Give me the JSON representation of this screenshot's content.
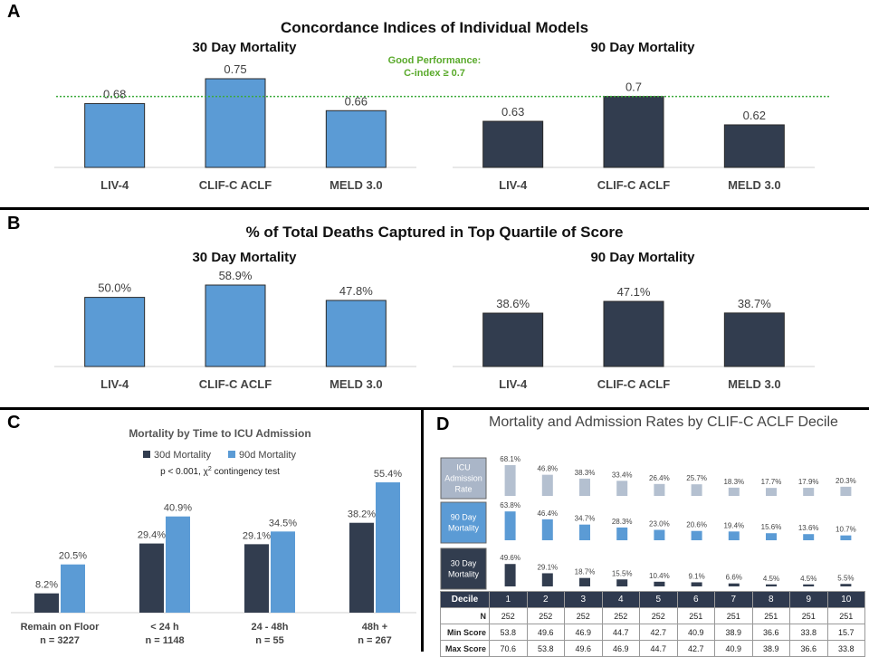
{
  "panels": {
    "a": "A",
    "b": "B",
    "c": "C",
    "d": "D"
  },
  "colors": {
    "blue": "#5b9bd5",
    "navy": "#323d4f",
    "green_line": "#3daa3d",
    "green_text": "#5aaa2c",
    "gray_bar": "#b4c0d0",
    "gray_box": "#aab6c8"
  },
  "panel_a": {
    "title": "Concordance Indices of Individual Models",
    "threshold_label_1": "Good Performance:",
    "threshold_label_2": "C-index ≥ 0.7",
    "threshold": 0.7
  },
  "panel_b": {
    "title": "% of Total Deaths Captured in Top Quartile of Score"
  },
  "panel_c": {
    "title": "Mortality by Time to ICU Admission",
    "stat_prefix": "p < 0.001, χ",
    "stat_sup": "2",
    "stat_suffix": " contingency test"
  },
  "panel_d": {
    "title": "Mortality and Admission Rates by CLIF-C ACLF Decile",
    "row_labels": [
      [
        "ICU",
        "Admission",
        "Rate"
      ],
      [
        "90 Day",
        "Mortality"
      ],
      [
        "30 Day",
        "Mortality"
      ]
    ],
    "table": {
      "header_label": "Decile",
      "rows": [
        {
          "label": "N",
          "values": [
            "252",
            "252",
            "252",
            "252",
            "252",
            "251",
            "251",
            "251",
            "251",
            "251"
          ]
        },
        {
          "label": "Min Score",
          "values": [
            "53.8",
            "49.6",
            "46.9",
            "44.7",
            "42.7",
            "40.9",
            "38.9",
            "36.6",
            "33.8",
            "15.7"
          ]
        },
        {
          "label": "Max Score",
          "values": [
            "70.6",
            "53.8",
            "49.6",
            "46.9",
            "44.7",
            "42.7",
            "40.9",
            "38.9",
            "36.6",
            "33.8"
          ]
        }
      ]
    }
  },
  "chart_data": [
    {
      "type": "bar",
      "panel": "A",
      "title": "30 Day Mortality",
      "categories": [
        "LIV-4",
        "CLIF-C ACLF",
        "MELD 3.0"
      ],
      "values": [
        0.68,
        0.75,
        0.66
      ],
      "labels": [
        "0.68",
        "0.75",
        "0.66"
      ],
      "ylim": [
        0.5,
        0.8
      ]
    },
    {
      "type": "bar",
      "panel": "A",
      "title": "90 Day Mortality",
      "categories": [
        "LIV-4",
        "CLIF-C ACLF",
        "MELD 3.0"
      ],
      "values": [
        0.63,
        0.7,
        0.62
      ],
      "labels": [
        "0.63",
        "0.7",
        "0.62"
      ],
      "ylim": [
        0.5,
        0.8
      ]
    },
    {
      "type": "bar",
      "panel": "B",
      "title": "30 Day Mortality",
      "categories": [
        "LIV-4",
        "CLIF-C ACLF",
        "MELD 3.0"
      ],
      "values": [
        50.0,
        58.9,
        47.8
      ],
      "labels": [
        "50.0%",
        "58.9%",
        "47.8%"
      ],
      "ylim": [
        0,
        60
      ]
    },
    {
      "type": "bar",
      "panel": "B",
      "title": "90 Day Mortality",
      "categories": [
        "LIV-4",
        "CLIF-C ACLF",
        "MELD 3.0"
      ],
      "values": [
        38.6,
        47.1,
        38.7
      ],
      "labels": [
        "38.6%",
        "47.1%",
        "38.7%"
      ],
      "ylim": [
        0,
        60
      ]
    },
    {
      "type": "bar",
      "panel": "C",
      "title": "Mortality by Time to ICU Admission",
      "categories": [
        "Remain on Floor",
        "< 24 h",
        "24 - 48h",
        "48h +"
      ],
      "category_n": [
        "n = 3227",
        "n = 1148",
        "n = 55",
        "n = 267"
      ],
      "series": [
        {
          "name": "30d Mortality",
          "values": [
            8.2,
            29.4,
            29.1,
            38.2
          ],
          "labels": [
            "8.2%",
            "29.4%",
            "29.1%",
            "38.2%"
          ]
        },
        {
          "name": "90d Mortality",
          "values": [
            20.5,
            40.9,
            34.5,
            55.4
          ],
          "labels": [
            "20.5%",
            "40.9%",
            "34.5%",
            "55.4%"
          ]
        }
      ],
      "ylim": [
        0,
        60
      ],
      "legend": "top"
    },
    {
      "type": "bar",
      "panel": "D",
      "title": "Mortality and Admission Rates by CLIF-C ACLF Decile",
      "categories": [
        "1",
        "2",
        "3",
        "4",
        "5",
        "6",
        "7",
        "8",
        "9",
        "10"
      ],
      "series": [
        {
          "name": "ICU Admission Rate",
          "values": [
            68.1,
            46.8,
            38.3,
            33.4,
            26.4,
            25.7,
            18.3,
            17.7,
            17.9,
            20.3
          ],
          "labels": [
            "68.1%",
            "46.8%",
            "38.3%",
            "33.4%",
            "26.4%",
            "25.7%",
            "18.3%",
            "17.7%",
            "17.9%",
            "20.3%"
          ]
        },
        {
          "name": "90 Day Mortality",
          "values": [
            63.8,
            46.4,
            34.7,
            28.3,
            23.0,
            20.6,
            19.4,
            15.6,
            13.6,
            10.7
          ],
          "labels": [
            "63.8%",
            "46.4%",
            "34.7%",
            "28.3%",
            "23.0%",
            "20.6%",
            "19.4%",
            "15.6%",
            "13.6%",
            "10.7%"
          ]
        },
        {
          "name": "30 Day Mortality",
          "values": [
            49.6,
            29.1,
            18.7,
            15.5,
            10.4,
            9.1,
            6.6,
            4.5,
            4.5,
            5.5
          ],
          "labels": [
            "49.6%",
            "29.1%",
            "18.7%",
            "15.5%",
            "10.4%",
            "9.1%",
            "6.6%",
            "4.5%",
            "4.5%",
            "5.5%"
          ]
        }
      ],
      "ylim": [
        0,
        70
      ]
    }
  ]
}
